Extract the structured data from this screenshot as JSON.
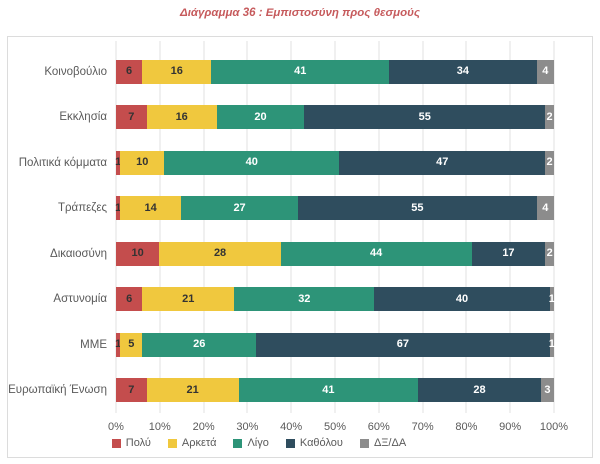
{
  "chart_data": {
    "type": "bar",
    "orientation": "horizontal",
    "stacked": true,
    "title": "Διάγραμμα 36 : Εμπιστοσύνη προς θεσμούς",
    "title_color": "#c65a5c",
    "categories": [
      "Κοινοβούλιο",
      "Εκκλησία",
      "Πολιτικά κόμματα",
      "Τράπεζες",
      "Δικαιοσύνη",
      "Αστυνομία",
      "ΜΜΕ",
      "Ευρωπαϊκή Ένωση"
    ],
    "series": [
      {
        "name": "Πολύ",
        "color": "#c44d4d",
        "label_color": "#333333",
        "values": [
          6,
          7,
          1,
          1,
          10,
          6,
          1,
          7
        ]
      },
      {
        "name": "Αρκετά",
        "color": "#f0c83e",
        "label_color": "#333333",
        "values": [
          16,
          16,
          10,
          14,
          28,
          21,
          5,
          21
        ]
      },
      {
        "name": "Λίγο",
        "color": "#2d9478",
        "label_color": "#ffffff",
        "values": [
          41,
          20,
          40,
          27,
          44,
          32,
          26,
          41
        ]
      },
      {
        "name": "Καθόλου",
        "color": "#2f4d5e",
        "label_color": "#ffffff",
        "values": [
          34,
          55,
          47,
          55,
          17,
          40,
          67,
          28
        ]
      },
      {
        "name": "ΔΞ/ΔΑ",
        "color": "#8c8c8c",
        "label_color": "#ffffff",
        "values": [
          4,
          2,
          2,
          4,
          2,
          1,
          1,
          3
        ]
      }
    ],
    "x_ticks": [
      "0%",
      "10%",
      "20%",
      "30%",
      "40%",
      "50%",
      "60%",
      "70%",
      "80%",
      "90%",
      "100%"
    ],
    "xlim": [
      0,
      100
    ],
    "grid": "vertical",
    "legend_position": "bottom"
  }
}
